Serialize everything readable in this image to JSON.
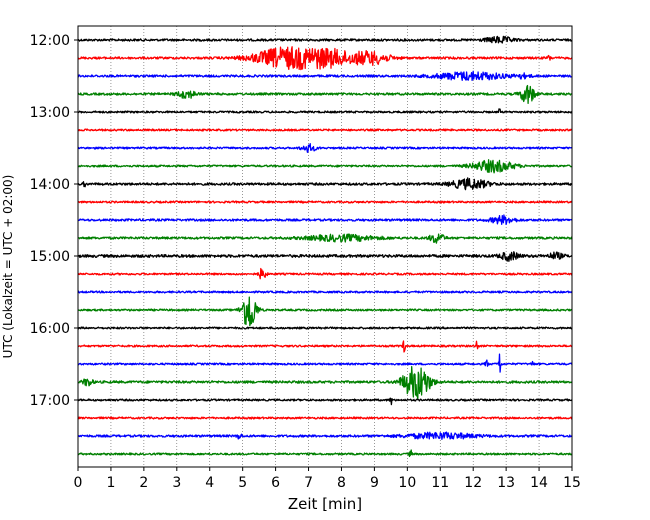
{
  "chart_data": {
    "type": "line",
    "title": "",
    "xlabel": "Zeit  [min]",
    "ylabel": "UTC (Lokalzeit = UTC + 02:00)",
    "xlim": [
      0,
      15
    ],
    "x_ticks": [
      0,
      1,
      2,
      3,
      4,
      5,
      6,
      7,
      8,
      9,
      10,
      11,
      12,
      13,
      14,
      15
    ],
    "x_tick_labels": [
      "0",
      "1",
      "2",
      "3",
      "4",
      "5",
      "6",
      "7",
      "8",
      "9",
      "10",
      "11",
      "12",
      "13",
      "14",
      "15"
    ],
    "grid": "vertical dotted",
    "y_tick_labels": [
      "12:00",
      "13:00",
      "14:00",
      "15:00",
      "16:00",
      "17:00"
    ],
    "y_tick_rows": [
      0,
      4,
      8,
      12,
      16,
      20
    ],
    "trace_minutes": 15,
    "colors": [
      "#000000",
      "#ff0000",
      "#0000ff",
      "#008000"
    ],
    "series": [
      {
        "name": "12:00",
        "color": "#000000",
        "baseline_amp": 1.2,
        "events": [
          {
            "t": 12.8,
            "amp": 3,
            "dur": 0.6
          }
        ]
      },
      {
        "name": "12:15",
        "color": "#ff0000",
        "baseline_amp": 1.2,
        "events": [
          {
            "t": 6.3,
            "amp": 10,
            "dur": 1.4
          },
          {
            "t": 7.6,
            "amp": 8,
            "dur": 1.2
          },
          {
            "t": 8.9,
            "amp": 6,
            "dur": 0.8
          },
          {
            "t": 14.3,
            "amp": 2,
            "dur": 0.1
          }
        ]
      },
      {
        "name": "12:30",
        "color": "#0000ff",
        "baseline_amp": 1.2,
        "events": [
          {
            "t": 11.9,
            "amp": 4,
            "dur": 1.5
          },
          {
            "t": 13.5,
            "amp": 2,
            "dur": 0.3
          }
        ]
      },
      {
        "name": "12:45",
        "color": "#008000",
        "baseline_amp": 1.2,
        "events": [
          {
            "t": 3.3,
            "amp": 4,
            "dur": 0.4
          },
          {
            "t": 13.65,
            "amp": 10,
            "dur": 0.3
          }
        ]
      },
      {
        "name": "13:00",
        "color": "#000000",
        "baseline_amp": 1.0,
        "events": [
          {
            "t": 12.8,
            "amp": 3,
            "dur": 0.05
          }
        ]
      },
      {
        "name": "13:15",
        "color": "#ff0000",
        "baseline_amp": 1.0,
        "events": []
      },
      {
        "name": "13:30",
        "color": "#0000ff",
        "baseline_amp": 1.0,
        "events": [
          {
            "t": 7.0,
            "amp": 4,
            "dur": 0.3
          }
        ]
      },
      {
        "name": "13:45",
        "color": "#008000",
        "baseline_amp": 1.0,
        "events": [
          {
            "t": 12.6,
            "amp": 6,
            "dur": 0.9
          }
        ]
      },
      {
        "name": "14:00",
        "color": "#000000",
        "baseline_amp": 1.3,
        "events": [
          {
            "t": 0.2,
            "amp": 3,
            "dur": 0.05
          },
          {
            "t": 11.9,
            "amp": 5,
            "dur": 0.8
          }
        ]
      },
      {
        "name": "14:15",
        "color": "#ff0000",
        "baseline_amp": 1.0,
        "events": []
      },
      {
        "name": "14:30",
        "color": "#0000ff",
        "baseline_amp": 1.2,
        "events": [
          {
            "t": 12.9,
            "amp": 4,
            "dur": 0.5
          }
        ]
      },
      {
        "name": "14:45",
        "color": "#008000",
        "baseline_amp": 1.2,
        "events": [
          {
            "t": 8.0,
            "amp": 3,
            "dur": 1.5
          },
          {
            "t": 10.9,
            "amp": 5,
            "dur": 0.3
          }
        ]
      },
      {
        "name": "15:00",
        "color": "#000000",
        "baseline_amp": 1.5,
        "events": [
          {
            "t": 13.1,
            "amp": 4,
            "dur": 0.4
          },
          {
            "t": 14.5,
            "amp": 3,
            "dur": 0.3
          }
        ]
      },
      {
        "name": "15:15",
        "color": "#ff0000",
        "baseline_amp": 1.0,
        "events": [
          {
            "t": 5.6,
            "amp": 6,
            "dur": 0.15
          }
        ]
      },
      {
        "name": "15:30",
        "color": "#0000ff",
        "baseline_amp": 1.0,
        "events": []
      },
      {
        "name": "15:45",
        "color": "#008000",
        "baseline_amp": 1.0,
        "events": [
          {
            "t": 5.2,
            "amp": 22,
            "dur": 0.3
          }
        ]
      },
      {
        "name": "16:00",
        "color": "#000000",
        "baseline_amp": 1.0,
        "events": []
      },
      {
        "name": "16:15",
        "color": "#ff0000",
        "baseline_amp": 1.0,
        "events": [
          {
            "t": 9.9,
            "amp": 7,
            "dur": 0.05
          },
          {
            "t": 12.1,
            "amp": 6,
            "dur": 0.05
          }
        ]
      },
      {
        "name": "16:30",
        "color": "#0000ff",
        "baseline_amp": 1.0,
        "events": [
          {
            "t": 12.8,
            "amp": 14,
            "dur": 0.05
          },
          {
            "t": 12.4,
            "amp": 6,
            "dur": 0.05
          },
          {
            "t": 13.8,
            "amp": 4,
            "dur": 0.05
          }
        ]
      },
      {
        "name": "16:45",
        "color": "#008000",
        "baseline_amp": 1.3,
        "events": [
          {
            "t": 0.3,
            "amp": 4,
            "dur": 0.2
          },
          {
            "t": 10.35,
            "amp": 16,
            "dur": 0.5
          },
          {
            "t": 10.0,
            "amp": 5,
            "dur": 0.4
          }
        ]
      },
      {
        "name": "17:00",
        "color": "#000000",
        "baseline_amp": 1.0,
        "events": [
          {
            "t": 9.5,
            "amp": 5,
            "dur": 0.05
          }
        ]
      },
      {
        "name": "17:15",
        "color": "#ff0000",
        "baseline_amp": 1.0,
        "events": []
      },
      {
        "name": "17:30",
        "color": "#0000ff",
        "baseline_amp": 1.2,
        "events": [
          {
            "t": 4.9,
            "amp": 3,
            "dur": 0.1
          },
          {
            "t": 11.0,
            "amp": 3,
            "dur": 1.5
          }
        ]
      },
      {
        "name": "17:45",
        "color": "#008000",
        "baseline_amp": 1.0,
        "events": [
          {
            "t": 10.1,
            "amp": 5,
            "dur": 0.05
          }
        ]
      }
    ]
  }
}
